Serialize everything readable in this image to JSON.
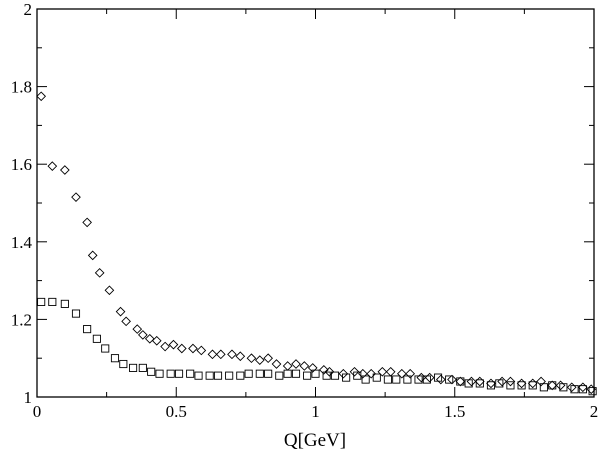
{
  "chart_data": {
    "type": "scatter",
    "title": "",
    "xlabel": "Q[GeV]",
    "ylabel": "",
    "xlim": [
      0,
      2
    ],
    "ylim": [
      1,
      2
    ],
    "grid": false,
    "x_ticks": [
      0,
      0.5,
      1,
      1.5,
      2
    ],
    "y_ticks": [
      1,
      1.2,
      1.4,
      1.6,
      1.8,
      2
    ],
    "x_tick_labels": [
      "0",
      "0.5",
      "1",
      "1.5",
      "2"
    ],
    "y_tick_labels": [
      "1",
      "1.2",
      "1.4",
      "1.6",
      "1.8",
      "2"
    ],
    "series": [
      {
        "marker": "diamond",
        "color": "#000000",
        "x": [
          0.015,
          0.055,
          0.1,
          0.14,
          0.18,
          0.2,
          0.225,
          0.26,
          0.3,
          0.32,
          0.36,
          0.38,
          0.405,
          0.43,
          0.46,
          0.49,
          0.52,
          0.56,
          0.59,
          0.63,
          0.66,
          0.7,
          0.73,
          0.77,
          0.8,
          0.83,
          0.86,
          0.9,
          0.93,
          0.96,
          0.99,
          1.03,
          1.05,
          1.1,
          1.14,
          1.17,
          1.2,
          1.24,
          1.27,
          1.31,
          1.34,
          1.38,
          1.41,
          1.45,
          1.49,
          1.52,
          1.56,
          1.59,
          1.63,
          1.67,
          1.7,
          1.74,
          1.78,
          1.81,
          1.85,
          1.88,
          1.92,
          1.96,
          1.99
        ],
        "y": [
          1.775,
          1.595,
          1.585,
          1.515,
          1.45,
          1.365,
          1.32,
          1.275,
          1.22,
          1.195,
          1.175,
          1.16,
          1.15,
          1.145,
          1.13,
          1.135,
          1.125,
          1.125,
          1.12,
          1.11,
          1.11,
          1.11,
          1.105,
          1.1,
          1.095,
          1.1,
          1.085,
          1.08,
          1.085,
          1.08,
          1.075,
          1.07,
          1.065,
          1.06,
          1.065,
          1.06,
          1.06,
          1.065,
          1.065,
          1.06,
          1.06,
          1.05,
          1.05,
          1.045,
          1.045,
          1.04,
          1.04,
          1.04,
          1.035,
          1.04,
          1.04,
          1.035,
          1.035,
          1.04,
          1.03,
          1.03,
          1.025,
          1.025,
          1.02
        ]
      },
      {
        "marker": "square",
        "color": "#000000",
        "x": [
          0.015,
          0.055,
          0.1,
          0.14,
          0.18,
          0.215,
          0.245,
          0.28,
          0.31,
          0.345,
          0.38,
          0.41,
          0.44,
          0.48,
          0.51,
          0.55,
          0.58,
          0.62,
          0.65,
          0.69,
          0.73,
          0.76,
          0.8,
          0.83,
          0.87,
          0.9,
          0.93,
          0.97,
          1.0,
          1.04,
          1.07,
          1.11,
          1.15,
          1.18,
          1.22,
          1.26,
          1.29,
          1.33,
          1.37,
          1.4,
          1.44,
          1.48,
          1.52,
          1.55,
          1.59,
          1.63,
          1.66,
          1.7,
          1.74,
          1.78,
          1.82,
          1.85,
          1.89,
          1.93,
          1.96,
          1.995
        ],
        "y": [
          1.245,
          1.245,
          1.24,
          1.215,
          1.175,
          1.15,
          1.125,
          1.1,
          1.085,
          1.075,
          1.075,
          1.065,
          1.06,
          1.06,
          1.06,
          1.06,
          1.055,
          1.055,
          1.055,
          1.055,
          1.055,
          1.06,
          1.06,
          1.06,
          1.055,
          1.06,
          1.06,
          1.055,
          1.06,
          1.055,
          1.055,
          1.05,
          1.055,
          1.045,
          1.05,
          1.045,
          1.045,
          1.045,
          1.045,
          1.045,
          1.05,
          1.045,
          1.04,
          1.035,
          1.035,
          1.03,
          1.035,
          1.03,
          1.03,
          1.03,
          1.025,
          1.03,
          1.025,
          1.02,
          1.02,
          1.015
        ]
      }
    ]
  }
}
